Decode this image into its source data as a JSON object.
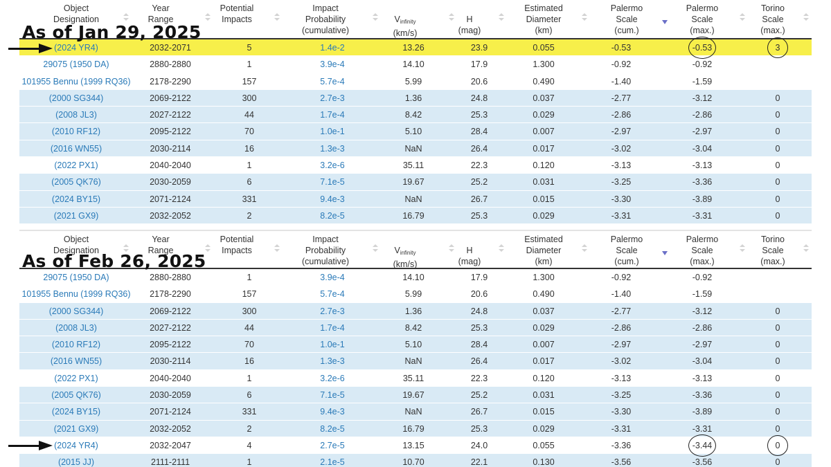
{
  "labels": {
    "top": "As of Jan 29, 2025",
    "bottom": "As of Feb 26, 2025"
  },
  "columns": {
    "object": [
      "Object",
      "Designation"
    ],
    "year": [
      "Year",
      "Range"
    ],
    "potential": [
      "Potential",
      "Impacts"
    ],
    "probability": [
      "Impact",
      "Probability",
      "(cumulative)"
    ],
    "vinf": {
      "main": "V",
      "sub": "infinity",
      "unit": "(km/s)"
    },
    "h": [
      "H",
      "(mag)"
    ],
    "diameter": [
      "Estimated",
      "Diameter",
      "(km)"
    ],
    "palermo_cum": [
      "Palermo",
      "Scale",
      "(cum.)"
    ],
    "palermo_max": [
      "Palermo",
      "Scale",
      "(max.)"
    ],
    "torino": [
      "Torino",
      "Scale",
      "(max.)"
    ]
  },
  "table_top": [
    {
      "obj": "(2024 YR4)",
      "year": "2032-2071",
      "pot": "5",
      "prob": "1.4e-2",
      "vinf": "13.26",
      "h": "23.9",
      "diam": "0.055",
      "pcum": "-0.53",
      "pmax": "-0.53",
      "tor": "3",
      "style": "highlight"
    },
    {
      "obj": "29075 (1950 DA)",
      "year": "2880-2880",
      "pot": "1",
      "prob": "3.9e-4",
      "vinf": "14.10",
      "h": "17.9",
      "diam": "1.300",
      "pcum": "-0.92",
      "pmax": "-0.92",
      "tor": "",
      "style": "plain"
    },
    {
      "obj": "101955 Bennu (1999 RQ36)",
      "year": "2178-2290",
      "pot": "157",
      "prob": "5.7e-4",
      "vinf": "5.99",
      "h": "20.6",
      "diam": "0.490",
      "pcum": "-1.40",
      "pmax": "-1.59",
      "tor": "",
      "style": "plain"
    },
    {
      "obj": "(2000 SG344)",
      "year": "2069-2122",
      "pot": "300",
      "prob": "2.7e-3",
      "vinf": "1.36",
      "h": "24.8",
      "diam": "0.037",
      "pcum": "-2.77",
      "pmax": "-3.12",
      "tor": "0",
      "style": "shaded"
    },
    {
      "obj": "(2008 JL3)",
      "year": "2027-2122",
      "pot": "44",
      "prob": "1.7e-4",
      "vinf": "8.42",
      "h": "25.3",
      "diam": "0.029",
      "pcum": "-2.86",
      "pmax": "-2.86",
      "tor": "0",
      "style": "shaded"
    },
    {
      "obj": "(2010 RF12)",
      "year": "2095-2122",
      "pot": "70",
      "prob": "1.0e-1",
      "vinf": "5.10",
      "h": "28.4",
      "diam": "0.007",
      "pcum": "-2.97",
      "pmax": "-2.97",
      "tor": "0",
      "style": "shaded"
    },
    {
      "obj": "(2016 WN55)",
      "year": "2030-2114",
      "pot": "16",
      "prob": "1.3e-3",
      "vinf": "NaN",
      "h": "26.4",
      "diam": "0.017",
      "pcum": "-3.02",
      "pmax": "-3.04",
      "tor": "0",
      "style": "shaded"
    },
    {
      "obj": "(2022 PX1)",
      "year": "2040-2040",
      "pot": "1",
      "prob": "3.2e-6",
      "vinf": "35.11",
      "h": "22.3",
      "diam": "0.120",
      "pcum": "-3.13",
      "pmax": "-3.13",
      "tor": "0",
      "style": "plain"
    },
    {
      "obj": "(2005 QK76)",
      "year": "2030-2059",
      "pot": "6",
      "prob": "7.1e-5",
      "vinf": "19.67",
      "h": "25.2",
      "diam": "0.031",
      "pcum": "-3.25",
      "pmax": "-3.36",
      "tor": "0",
      "style": "shaded"
    },
    {
      "obj": "(2024 BY15)",
      "year": "2071-2124",
      "pot": "331",
      "prob": "9.4e-3",
      "vinf": "NaN",
      "h": "26.7",
      "diam": "0.015",
      "pcum": "-3.30",
      "pmax": "-3.89",
      "tor": "0",
      "style": "shaded"
    },
    {
      "obj": "(2021 GX9)",
      "year": "2032-2052",
      "pot": "2",
      "prob": "8.2e-5",
      "vinf": "16.79",
      "h": "25.3",
      "diam": "0.029",
      "pcum": "-3.31",
      "pmax": "-3.31",
      "tor": "0",
      "style": "shaded"
    }
  ],
  "table_bottom": [
    {
      "obj": "29075 (1950 DA)",
      "year": "2880-2880",
      "pot": "1",
      "prob": "3.9e-4",
      "vinf": "14.10",
      "h": "17.9",
      "diam": "1.300",
      "pcum": "-0.92",
      "pmax": "-0.92",
      "tor": "",
      "style": "plain"
    },
    {
      "obj": "101955 Bennu (1999 RQ36)",
      "year": "2178-2290",
      "pot": "157",
      "prob": "5.7e-4",
      "vinf": "5.99",
      "h": "20.6",
      "diam": "0.490",
      "pcum": "-1.40",
      "pmax": "-1.59",
      "tor": "",
      "style": "plain"
    },
    {
      "obj": "(2000 SG344)",
      "year": "2069-2122",
      "pot": "300",
      "prob": "2.7e-3",
      "vinf": "1.36",
      "h": "24.8",
      "diam": "0.037",
      "pcum": "-2.77",
      "pmax": "-3.12",
      "tor": "0",
      "style": "shaded"
    },
    {
      "obj": "(2008 JL3)",
      "year": "2027-2122",
      "pot": "44",
      "prob": "1.7e-4",
      "vinf": "8.42",
      "h": "25.3",
      "diam": "0.029",
      "pcum": "-2.86",
      "pmax": "-2.86",
      "tor": "0",
      "style": "shaded"
    },
    {
      "obj": "(2010 RF12)",
      "year": "2095-2122",
      "pot": "70",
      "prob": "1.0e-1",
      "vinf": "5.10",
      "h": "28.4",
      "diam": "0.007",
      "pcum": "-2.97",
      "pmax": "-2.97",
      "tor": "0",
      "style": "shaded"
    },
    {
      "obj": "(2016 WN55)",
      "year": "2030-2114",
      "pot": "16",
      "prob": "1.3e-3",
      "vinf": "NaN",
      "h": "26.4",
      "diam": "0.017",
      "pcum": "-3.02",
      "pmax": "-3.04",
      "tor": "0",
      "style": "shaded"
    },
    {
      "obj": "(2022 PX1)",
      "year": "2040-2040",
      "pot": "1",
      "prob": "3.2e-6",
      "vinf": "35.11",
      "h": "22.3",
      "diam": "0.120",
      "pcum": "-3.13",
      "pmax": "-3.13",
      "tor": "0",
      "style": "plain"
    },
    {
      "obj": "(2005 QK76)",
      "year": "2030-2059",
      "pot": "6",
      "prob": "7.1e-5",
      "vinf": "19.67",
      "h": "25.2",
      "diam": "0.031",
      "pcum": "-3.25",
      "pmax": "-3.36",
      "tor": "0",
      "style": "shaded"
    },
    {
      "obj": "(2024 BY15)",
      "year": "2071-2124",
      "pot": "331",
      "prob": "9.4e-3",
      "vinf": "NaN",
      "h": "26.7",
      "diam": "0.015",
      "pcum": "-3.30",
      "pmax": "-3.89",
      "tor": "0",
      "style": "shaded"
    },
    {
      "obj": "(2021 GX9)",
      "year": "2032-2052",
      "pot": "2",
      "prob": "8.2e-5",
      "vinf": "16.79",
      "h": "25.3",
      "diam": "0.029",
      "pcum": "-3.31",
      "pmax": "-3.31",
      "tor": "0",
      "style": "shaded"
    },
    {
      "obj": "(2024 YR4)",
      "year": "2032-2047",
      "pot": "4",
      "prob": "2.7e-5",
      "vinf": "13.15",
      "h": "24.0",
      "diam": "0.055",
      "pcum": "-3.36",
      "pmax": "-3.44",
      "tor": "0",
      "style": "plain"
    },
    {
      "obj": "(2015 JJ)",
      "year": "2111-2111",
      "pot": "1",
      "prob": "2.1e-5",
      "vinf": "10.70",
      "h": "22.1",
      "diam": "0.130",
      "pcum": "-3.56",
      "pmax": "-3.56",
      "tor": "0",
      "style": "shaded"
    }
  ],
  "colors": {
    "highlight_row": "#f7ef4a",
    "shaded_row": "#d9eaf5",
    "link": "#2a7ab8",
    "sort_active": "#6a6fc7"
  },
  "icons": {
    "arrow": "right-arrow-icon",
    "circle": "annotation-circle",
    "sort": "sort-icon",
    "sort_active": "sort-descending-icon"
  }
}
